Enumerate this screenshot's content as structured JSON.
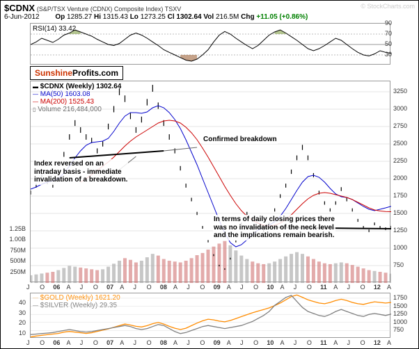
{
  "header": {
    "ticker": "$CDNX",
    "name": "(S&P/TSX Venture (CDNX) Composite Index) TSXV",
    "watermark": "© StockCharts.com",
    "date": "6-Jun-2012",
    "op_label": "Op",
    "op": "1285.27",
    "hi_label": "Hi",
    "hi": "1315.43",
    "lo_label": "Lo",
    "lo": "1273.25",
    "cl_label": "Cl",
    "cl": "1302.64",
    "vol_label": "Vol",
    "vol": "216.5M",
    "chg_label": "Chg",
    "chg": "+11.05 (+0.86%)",
    "chg_color": "#008000"
  },
  "rsi_panel": {
    "label": "RSI(14)",
    "value": "33.42",
    "ylim": [
      10,
      90
    ],
    "yticks": [
      30,
      50,
      70,
      90
    ],
    "bands": [
      30,
      70
    ],
    "line_color": "#000000",
    "fill_above_color": "#6b8e23",
    "fill_below_color": "#8b4513",
    "values": [
      50,
      55,
      62,
      58,
      54,
      60,
      68,
      72,
      78,
      74,
      70,
      66,
      60,
      55,
      50,
      48,
      52,
      60,
      68,
      72,
      68,
      62,
      55,
      48,
      40,
      35,
      30,
      25,
      20,
      18,
      22,
      30,
      40,
      55,
      68,
      75,
      70,
      62,
      55,
      48,
      42,
      48,
      58,
      68,
      74,
      78,
      72,
      65,
      58,
      50,
      42,
      38,
      42,
      48,
      55,
      62,
      58,
      50,
      42,
      35,
      30,
      28,
      32,
      38,
      35,
      33
    ]
  },
  "brand": {
    "text1": "Sunshine",
    "text2": "Profits.com",
    "color1": "#cc3300",
    "color2": "#000000",
    "border_color": "#000000"
  },
  "main_panel": {
    "legend": {
      "main_label": "$CDNX (Weekly)",
      "main_value": "1302.64",
      "main_color": "#000000",
      "ma50_label": "MA(50)",
      "ma50_value": "1603.08",
      "ma50_color": "#0000cc",
      "ma200_label": "MA(200)",
      "ma200_value": "1525.43",
      "ma200_color": "#cc0000",
      "volume_label": "Volume",
      "volume_value": "216,484,000",
      "volume_color": "#666666"
    },
    "price_ylim": [
      500,
      3400
    ],
    "price_yticks": [
      750,
      1000,
      1250,
      1500,
      1750,
      2000,
      2250,
      2500,
      2750,
      3000,
      3250
    ],
    "volume_yticks": [
      "250M",
      "500M",
      "750M",
      "1.00B",
      "1.25B"
    ],
    "price_color": "#000000",
    "ma50_color": "#0000cc",
    "ma200_color": "#cc0000",
    "volume_bar_color_up": "#999999",
    "volume_bar_color_dn": "#cc6666",
    "price": [
      1800,
      1900,
      2050,
      1950,
      1900,
      2100,
      2350,
      2600,
      2800,
      2700,
      2600,
      2550,
      2400,
      2500,
      2750,
      3000,
      3250,
      3150,
      2900,
      2700,
      2850,
      3100,
      3300,
      3050,
      2800,
      2600,
      2400,
      2150,
      1900,
      1700,
      1500,
      1300,
      1100,
      900,
      750,
      700,
      850,
      1100,
      1350,
      1500,
      1400,
      1300,
      1250,
      1350,
      1550,
      1750,
      1900,
      2100,
      2300,
      2450,
      2300,
      2050,
      1800,
      1650,
      1550,
      1650,
      1850,
      1700,
      1550,
      1400,
      1300,
      1250,
      1350,
      1300,
      1280,
      1302
    ],
    "ma50": [
      1850,
      1880,
      1920,
      1950,
      1970,
      2000,
      2080,
      2180,
      2300,
      2400,
      2480,
      2520,
      2530,
      2540,
      2580,
      2680,
      2800,
      2900,
      2950,
      2950,
      2940,
      2960,
      3020,
      3050,
      3020,
      2950,
      2850,
      2720,
      2560,
      2380,
      2200,
      2000,
      1800,
      1600,
      1400,
      1220,
      1080,
      1020,
      1050,
      1120,
      1200,
      1260,
      1300,
      1330,
      1380,
      1460,
      1570,
      1700,
      1830,
      1950,
      2030,
      2050,
      2020,
      1950,
      1860,
      1780,
      1740,
      1730,
      1700,
      1650,
      1600,
      1560,
      1540,
      1560,
      1580,
      1603
    ],
    "ma200": [
      null,
      null,
      null,
      null,
      null,
      null,
      null,
      null,
      null,
      1950,
      2000,
      2060,
      2120,
      2180,
      2240,
      2310,
      2390,
      2470,
      2540,
      2600,
      2650,
      2700,
      2750,
      2800,
      2830,
      2840,
      2830,
      2800,
      2740,
      2660,
      2560,
      2440,
      2310,
      2170,
      2030,
      1890,
      1760,
      1640,
      1540,
      1460,
      1400,
      1360,
      1330,
      1320,
      1330,
      1360,
      1410,
      1480,
      1560,
      1640,
      1710,
      1760,
      1790,
      1800,
      1790,
      1770,
      1750,
      1730,
      1700,
      1660,
      1620,
      1580,
      1550,
      1535,
      1528,
      1525
    ],
    "volume": [
      180,
      200,
      220,
      240,
      260,
      300,
      350,
      400,
      380,
      360,
      340,
      320,
      300,
      320,
      380,
      450,
      520,
      580,
      540,
      480,
      520,
      600,
      680,
      640,
      560,
      520,
      500,
      480,
      520,
      580,
      650,
      700,
      780,
      850,
      920,
      980,
      880,
      760,
      640,
      560,
      500,
      460,
      440,
      460,
      500,
      560,
      620,
      680,
      720,
      680,
      620,
      560,
      500,
      460,
      440,
      460,
      480,
      460,
      420,
      380,
      340,
      300,
      280,
      260,
      240,
      216
    ],
    "annotations": {
      "breakdown_label": "Confirmed breakdown",
      "reversal_label": "Index reversed on an\nintraday basis - immediate\ninvalidation of a breakdown.",
      "neck_label": "In terms of daily closing prices there\nwas no invalidation of the neck level\nand the implications remain bearish."
    }
  },
  "bottom_panel": {
    "gold_label": "$GOLD (Weekly)",
    "gold_value": "1621.20",
    "gold_color": "#ff8c00",
    "silver_label": "$SILVER (Weekly)",
    "silver_value": "29.35",
    "silver_color": "#808080",
    "left_yticks": [
      10,
      20,
      30,
      40
    ],
    "right_yticks": [
      750,
      1000,
      1250,
      1500,
      1750
    ],
    "gold_data": [
      550,
      580,
      600,
      620,
      640,
      660,
      700,
      720,
      700,
      680,
      660,
      680,
      720,
      760,
      800,
      850,
      900,
      950,
      920,
      880,
      860,
      900,
      960,
      1000,
      950,
      880,
      820,
      780,
      820,
      900,
      980,
      1050,
      1100,
      1080,
      1040,
      1020,
      1060,
      1120,
      1180,
      1240,
      1300,
      1350,
      1400,
      1450,
      1520,
      1600,
      1700,
      1800,
      1850,
      1780,
      1700,
      1650,
      1600,
      1580,
      1620,
      1680,
      1720,
      1680,
      1620,
      1580,
      1560,
      1600,
      1640,
      1620,
      1600,
      1621
    ],
    "silver_data": [
      9,
      9.5,
      10,
      10.5,
      11,
      12,
      13,
      14,
      13,
      12,
      11.5,
      12,
      13,
      14,
      15,
      16,
      17,
      18,
      17,
      15,
      14,
      15,
      17,
      19,
      18,
      15,
      12,
      10,
      11,
      13,
      15,
      17,
      18,
      17,
      16,
      15,
      16,
      17,
      18,
      20,
      22,
      25,
      28,
      32,
      38,
      42,
      46,
      48,
      42,
      36,
      32,
      30,
      28,
      27,
      29,
      32,
      34,
      32,
      30,
      28,
      27,
      29,
      30,
      29,
      28,
      29.35
    ]
  },
  "x_axis": {
    "labels": [
      "J",
      "O",
      "06",
      "A",
      "J",
      "O",
      "07",
      "A",
      "J",
      "O",
      "08",
      "A",
      "J",
      "O",
      "09",
      "A",
      "J",
      "O",
      "10",
      "A",
      "J",
      "O",
      "11",
      "A",
      "J",
      "O",
      "12",
      "A"
    ]
  },
  "style": {
    "grid_color": "#cccccc",
    "background": "#ffffff"
  }
}
